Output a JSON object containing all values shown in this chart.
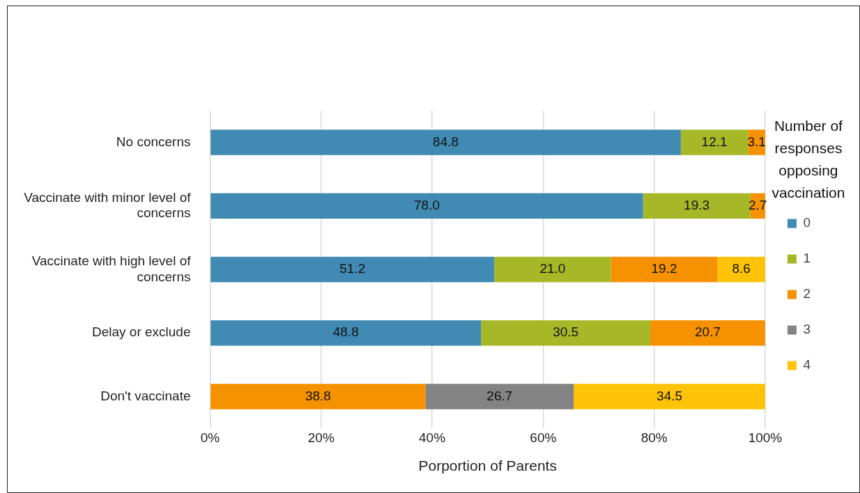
{
  "chart_data": {
    "type": "bar",
    "orientation": "horizontal",
    "stacked": true,
    "categories": [
      "No concerns",
      "Vaccinate with minor level of concerns",
      "Vaccinate with high level of concerns",
      "Delay or exclude",
      "Don't vaccinate"
    ],
    "series": [
      {
        "name": "0",
        "color": "#418ab3",
        "values": [
          84.8,
          78.0,
          51.2,
          48.8,
          null
        ],
        "value_labels": [
          "84.8",
          "78.0",
          "51.2",
          "48.8",
          null
        ]
      },
      {
        "name": "1",
        "color": "#a6b727",
        "values": [
          12.1,
          19.3,
          21.0,
          30.5,
          null
        ],
        "value_labels": [
          "12.1",
          "19.3",
          "21.0",
          "30.5",
          null
        ]
      },
      {
        "name": "2",
        "color": "#f69200",
        "values": [
          3.1,
          2.7,
          19.2,
          20.7,
          38.8
        ],
        "value_labels": [
          "3.1",
          "2.7",
          "19.2",
          "20.7",
          "38.8"
        ]
      },
      {
        "name": "3",
        "color": "#838383",
        "values": [
          null,
          null,
          null,
          null,
          26.7
        ],
        "value_labels": [
          null,
          null,
          null,
          null,
          "26.7"
        ]
      },
      {
        "name": "4",
        "color": "#fec306",
        "values": [
          null,
          null,
          8.6,
          null,
          34.5
        ],
        "value_labels": [
          null,
          null,
          "8.6",
          null,
          "34.5"
        ]
      }
    ],
    "xlim": [
      0,
      100
    ],
    "xticks": [
      {
        "value": 0,
        "label": "0%"
      },
      {
        "value": 20,
        "label": "20%"
      },
      {
        "value": 40,
        "label": "40%"
      },
      {
        "value": 60,
        "label": "60%"
      },
      {
        "value": 80,
        "label": "80%"
      },
      {
        "value": 100,
        "label": "100%"
      }
    ],
    "xlabel": "Porportion of Parents",
    "legend_title": "Number of responses opposing vaccination",
    "legend": "right",
    "grid": "x"
  }
}
